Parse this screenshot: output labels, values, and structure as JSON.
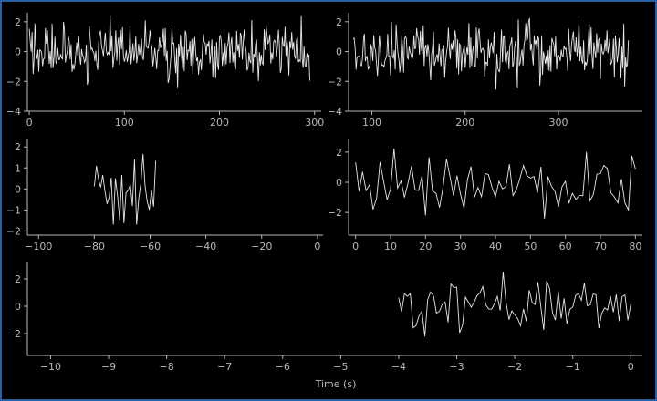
{
  "colors": {
    "background": "#000000",
    "frame": "#2a5fa6",
    "axis": "#b8b8b8",
    "trace": "#e8e8e8"
  },
  "xlabel": "Time (s)",
  "chart_data": [
    {
      "type": "line",
      "title": "",
      "xlabel": "",
      "ylabel": "",
      "xlim": [
        -2,
        307
      ],
      "ylim": [
        -4,
        2.6
      ],
      "xticks": [
        0,
        100,
        200,
        300
      ],
      "yticks": [
        -4,
        -2,
        0,
        2
      ],
      "series": [
        {
          "x_start": 0,
          "x_end": 295,
          "n_points": 296,
          "y_range": [
            -3.4,
            2.4
          ]
        }
      ]
    },
    {
      "type": "line",
      "title": "",
      "xlabel": "",
      "ylabel": "",
      "xlim": [
        75,
        390
      ],
      "ylim": [
        -4,
        2.6
      ],
      "xticks": [
        100,
        200,
        300
      ],
      "yticks": [
        -4,
        -2,
        0,
        2
      ],
      "series": [
        {
          "x_start": 80,
          "x_end": 375,
          "n_points": 296,
          "y_range": [
            -3.4,
            2.4
          ]
        }
      ]
    },
    {
      "type": "line",
      "title": "",
      "xlabel": "",
      "ylabel": "",
      "xlim": [
        -104,
        2
      ],
      "ylim": [
        -2.2,
        2.4
      ],
      "xticks": [
        -100,
        -80,
        -60,
        -40,
        -20,
        0
      ],
      "yticks": [
        -2,
        -1,
        0,
        1,
        2
      ],
      "series": [
        {
          "x_start": -80,
          "x_end": -58,
          "n_points": 30,
          "y_range": [
            -1.7,
            2.2
          ]
        }
      ]
    },
    {
      "type": "line",
      "title": "",
      "xlabel": "",
      "ylabel": "",
      "xlim": [
        -2,
        82
      ],
      "ylim": [
        -3.5,
        2.9
      ],
      "xticks": [
        0,
        10,
        20,
        30,
        40,
        50,
        60,
        70,
        80
      ],
      "yticks": [
        -2,
        0,
        2
      ],
      "series": [
        {
          "x_start": 0,
          "x_end": 80,
          "n_points": 81,
          "y_range": [
            -2.7,
            2.4
          ]
        }
      ]
    },
    {
      "type": "line",
      "title": "",
      "xlabel": "Time (s)",
      "ylabel": "",
      "xlim": [
        -10.4,
        0.2
      ],
      "ylim": [
        -3.6,
        3.2
      ],
      "xticks": [
        -10,
        -9,
        -8,
        -7,
        -6,
        -5,
        -4,
        -3,
        -2,
        -1,
        0
      ],
      "yticks": [
        -2,
        0,
        2
      ],
      "series": [
        {
          "x_start": -4,
          "x_end": 0,
          "n_points": 81,
          "y_range": [
            -3.0,
            2.9
          ]
        }
      ]
    }
  ]
}
